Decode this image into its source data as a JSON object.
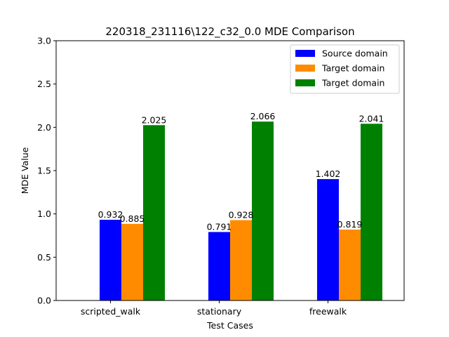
{
  "chart_data": {
    "type": "bar",
    "title": "220318_231116\\122_c32_0.0 MDE Comparison",
    "xlabel": "Test Cases",
    "ylabel": "MDE Value",
    "ylim": [
      0,
      3.0
    ],
    "yticks": [
      "0.0",
      "0.5",
      "1.0",
      "1.5",
      "2.0",
      "2.5",
      "3.0"
    ],
    "categories": [
      "scripted_walk",
      "stationary",
      "freewalk"
    ],
    "series": [
      {
        "name": "Source domain",
        "color": "#0000ff",
        "values": [
          0.932,
          0.791,
          1.402
        ],
        "labels": [
          "0.932",
          "0.791",
          "1.402"
        ]
      },
      {
        "name": "Target domain",
        "color": "#ff8c00",
        "values": [
          0.885,
          0.928,
          0.819
        ],
        "labels": [
          "0.885",
          "0.928",
          "0.819"
        ]
      },
      {
        "name": "Target domain",
        "color": "#008000",
        "values": [
          2.025,
          2.066,
          2.041
        ],
        "labels": [
          "2.025",
          "2.066",
          "2.041"
        ]
      }
    ],
    "legend": "top-right",
    "grid": false
  }
}
